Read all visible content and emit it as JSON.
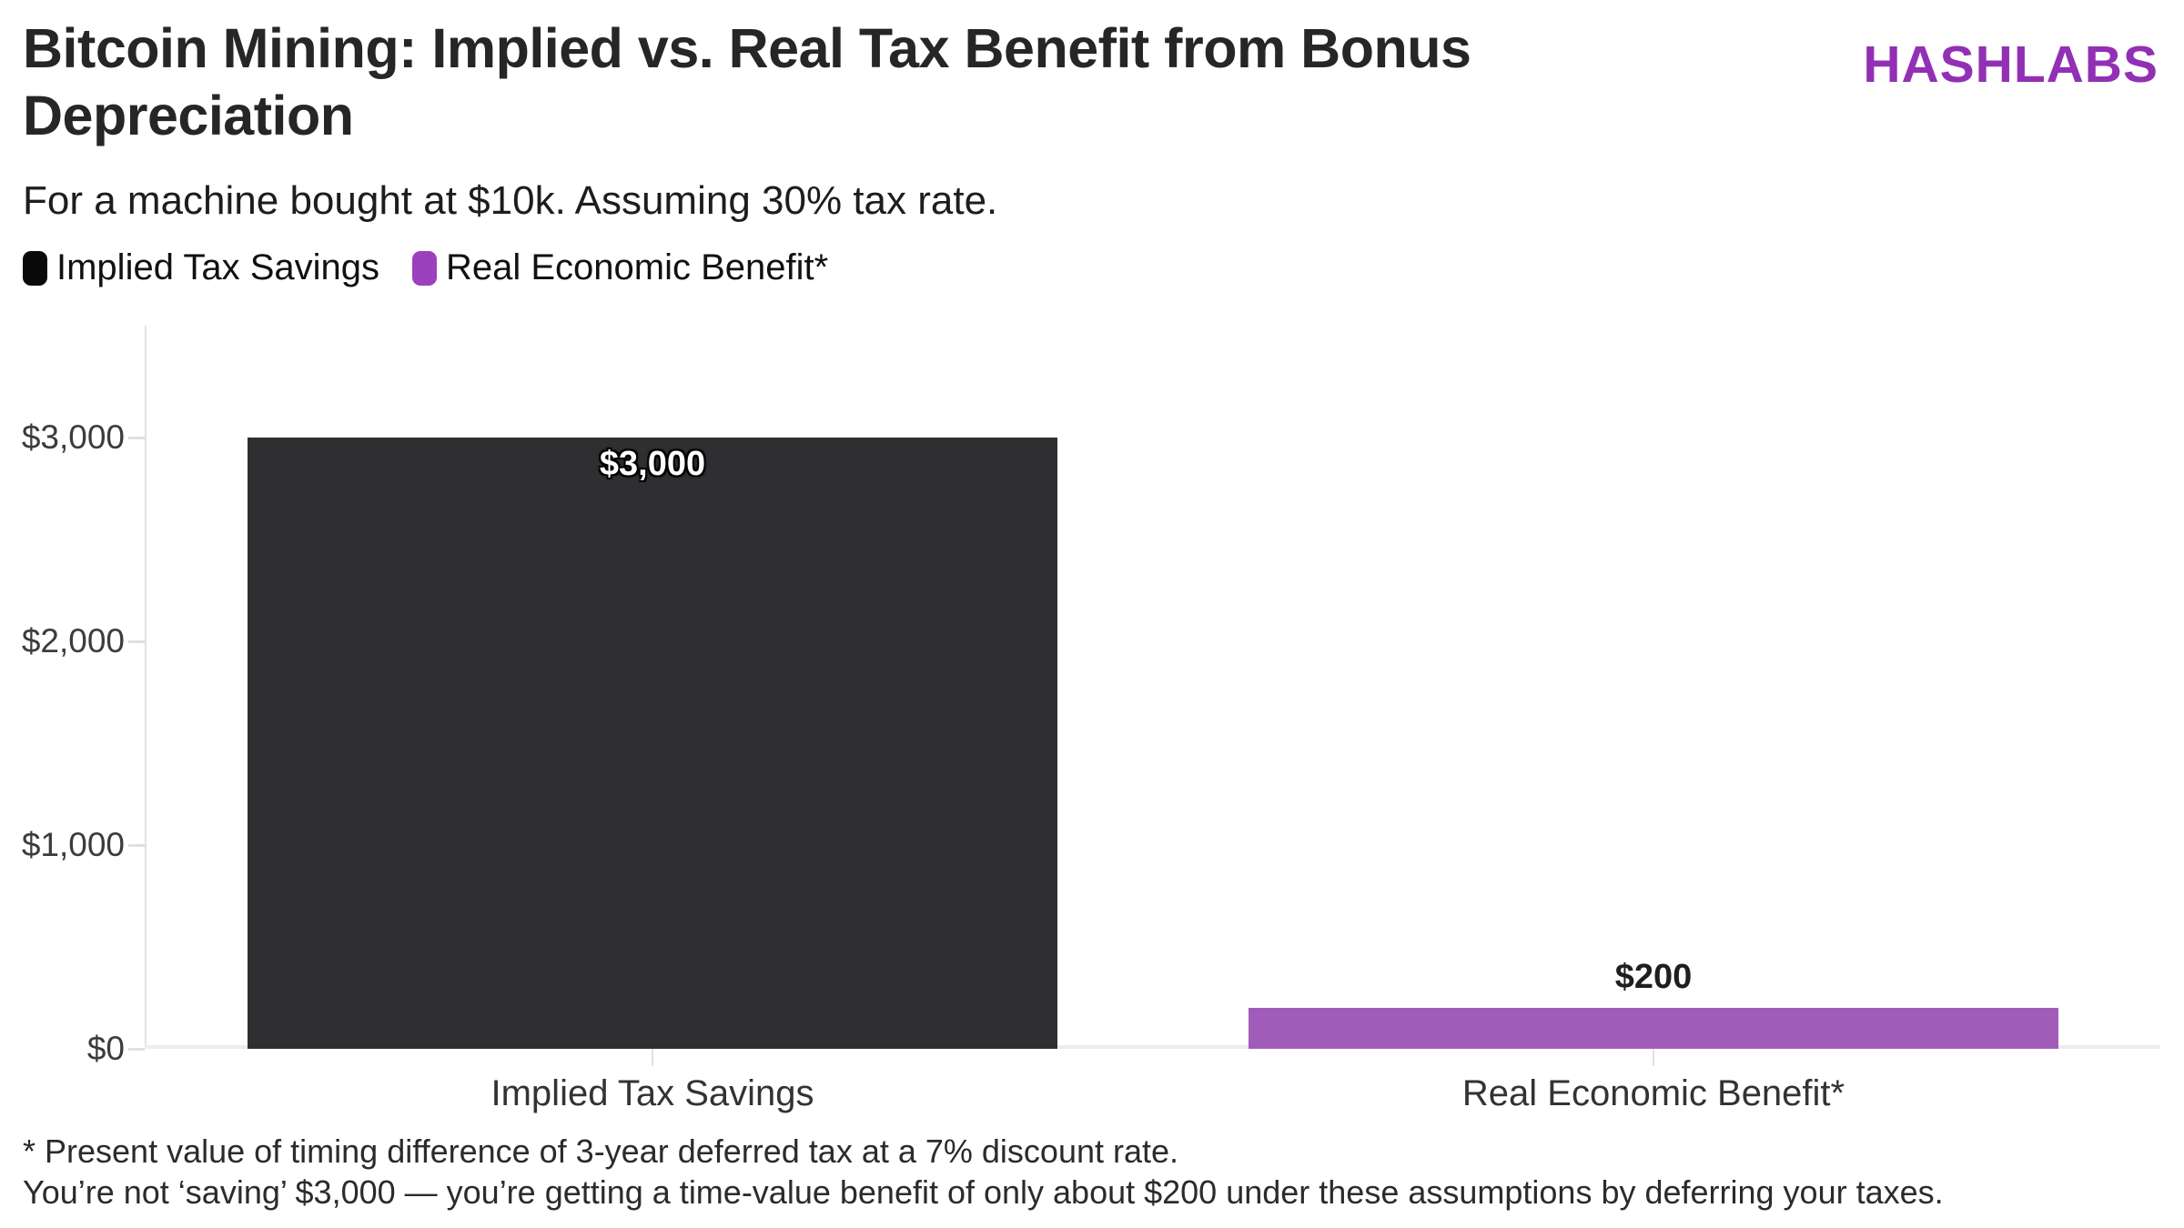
{
  "header": {
    "title": "Bitcoin Mining: Implied vs. Real Tax Benefit from Bonus Depreciation",
    "brand": "HASHLABS",
    "subtitle": "For a machine bought at $10k. Assuming 30% tax rate."
  },
  "legend": {
    "items": [
      {
        "label": "Implied Tax Savings",
        "color": "#0a0a0a"
      },
      {
        "label": "Real Economic Benefit*",
        "color": "#9b40bf"
      }
    ]
  },
  "chart_data": {
    "type": "bar",
    "title": "Bitcoin Mining: Implied vs. Real Tax Benefit from Bonus Depreciation",
    "subtitle": "For a machine bought at $10k. Assuming 30% tax rate.",
    "categories": [
      "Implied Tax Savings",
      "Real Economic Benefit*"
    ],
    "values": [
      3000,
      200
    ],
    "value_labels": [
      "$3,000",
      "$200"
    ],
    "bar_colors": [
      "#2f2f31",
      "#a15cba"
    ],
    "y_ticks": [
      {
        "label": "$3,000",
        "value": 3000
      },
      {
        "label": "$2,000",
        "value": 2000
      },
      {
        "label": "$1,000",
        "value": 1000
      },
      {
        "label": "$0",
        "value": 0
      }
    ],
    "ylim": [
      0,
      3550
    ],
    "grid": false,
    "legend_position": "top-left"
  },
  "footnotes": [
    "* Present value of timing difference of 3-year deferred tax at a 7% discount rate.",
    "You’re not ‘saving’ $3,000 — you’re getting a time-value benefit of only about $200 under these assumptions by deferring your taxes."
  ],
  "colors": {
    "brand_purple": "#9230b5",
    "bar_dark": "#2f2f31",
    "bar_purple": "#a15cba",
    "axis_line": "#e3e3e3",
    "baseline": "#ededed"
  }
}
